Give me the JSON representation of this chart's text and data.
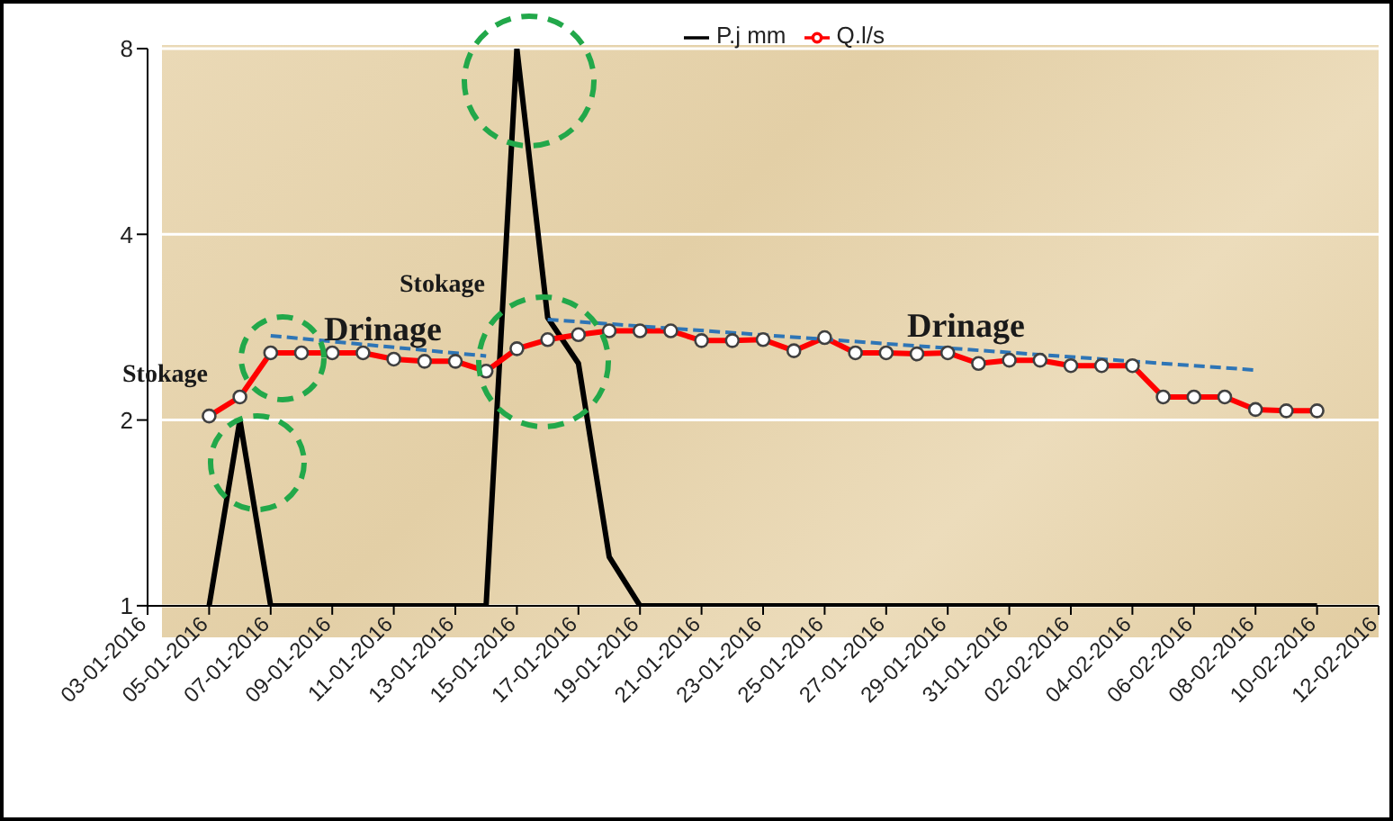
{
  "chart_data": {
    "type": "line",
    "log": "y",
    "ylim": [
      1,
      8
    ],
    "yticks": [
      1,
      2,
      4,
      8
    ],
    "grid": "y",
    "legend": "top right",
    "xlim": [
      "2016-01-03",
      "2016-02-12"
    ],
    "xticks": [
      {
        "value": "2016-01-03",
        "label": "03-01-2016"
      },
      {
        "value": "2016-01-05",
        "label": "05-01-2016"
      },
      {
        "value": "2016-01-07",
        "label": "07-01-2016"
      },
      {
        "value": "2016-01-09",
        "label": "09-01-2016"
      },
      {
        "value": "2016-01-11",
        "label": "11-01-2016"
      },
      {
        "value": "2016-01-13",
        "label": "13-01-2016"
      },
      {
        "value": "2016-01-15",
        "label": "15-01-2016"
      },
      {
        "value": "2016-01-17",
        "label": "17-01-2016"
      },
      {
        "value": "2016-01-19",
        "label": "19-01-2016"
      },
      {
        "value": "2016-01-21",
        "label": "21-01-2016"
      },
      {
        "value": "2016-01-23",
        "label": "23-01-2016"
      },
      {
        "value": "2016-01-25",
        "label": "25-01-2016"
      },
      {
        "value": "2016-01-27",
        "label": "27-01-2016"
      },
      {
        "value": "2016-01-29",
        "label": "29-01-2016"
      },
      {
        "value": "2016-01-31",
        "label": "31-01-2016"
      },
      {
        "value": "2016-02-02",
        "label": "02-02-2016"
      },
      {
        "value": "2016-02-04",
        "label": "04-02-2016"
      },
      {
        "value": "2016-02-06",
        "label": "06-02-2016"
      },
      {
        "value": "2016-02-08",
        "label": "08-02-2016"
      },
      {
        "value": "2016-02-10",
        "label": "10-02-2016"
      },
      {
        "value": "2016-02-12",
        "label": "12-02-2016"
      }
    ],
    "x": [
      "2016-01-05",
      "2016-01-06",
      "2016-01-07",
      "2016-01-08",
      "2016-01-09",
      "2016-01-10",
      "2016-01-11",
      "2016-01-12",
      "2016-01-13",
      "2016-01-14",
      "2016-01-15",
      "2016-01-16",
      "2016-01-17",
      "2016-01-18",
      "2016-01-19",
      "2016-01-20",
      "2016-01-21",
      "2016-01-22",
      "2016-01-23",
      "2016-01-24",
      "2016-01-25",
      "2016-01-26",
      "2016-01-27",
      "2016-01-28",
      "2016-01-29",
      "2016-01-30",
      "2016-01-31",
      "2016-02-01",
      "2016-02-02",
      "2016-02-03",
      "2016-02-04",
      "2016-02-05",
      "2016-02-06",
      "2016-02-07",
      "2016-02-08",
      "2016-02-09",
      "2016-02-10"
    ],
    "series": [
      {
        "name": "P.j mm",
        "color": "#000000",
        "marker": "none",
        "values": [
          1,
          2,
          1,
          1,
          1,
          1,
          1,
          1,
          1,
          1,
          8,
          2.93,
          2.47,
          1.2,
          1,
          1,
          1,
          1,
          1,
          1,
          1,
          1,
          1,
          1,
          1,
          1,
          1,
          1,
          1,
          1,
          1,
          1,
          1,
          1,
          1,
          1,
          1
        ]
      },
      {
        "name": "Q.l/s",
        "color": "#ff0000",
        "marker": "circle",
        "values": [
          2.03,
          2.18,
          2.57,
          2.57,
          2.57,
          2.57,
          2.51,
          2.49,
          2.49,
          2.4,
          2.61,
          2.7,
          2.75,
          2.79,
          2.79,
          2.79,
          2.69,
          2.69,
          2.7,
          2.59,
          2.72,
          2.57,
          2.57,
          2.56,
          2.57,
          2.47,
          2.5,
          2.5,
          2.45,
          2.45,
          2.45,
          2.18,
          2.18,
          2.18,
          2.08,
          2.07,
          2.07
        ]
      },
      {
        "type": "line",
        "color": "#2e75b6",
        "line_style": "dashed",
        "marker": "none",
        "x": [
          "2016-01-07",
          "2016-01-14"
        ],
        "values": [
          2.74,
          2.54
        ]
      },
      {
        "type": "line",
        "color": "#2e75b6",
        "line_style": "dashed",
        "marker": "none",
        "x": [
          "2016-01-16",
          "2016-02-08"
        ],
        "values": [
          2.91,
          2.41
        ]
      }
    ],
    "annotations": [
      "Stokage",
      "Drinage",
      "Stokage",
      "Drinage"
    ]
  }
}
